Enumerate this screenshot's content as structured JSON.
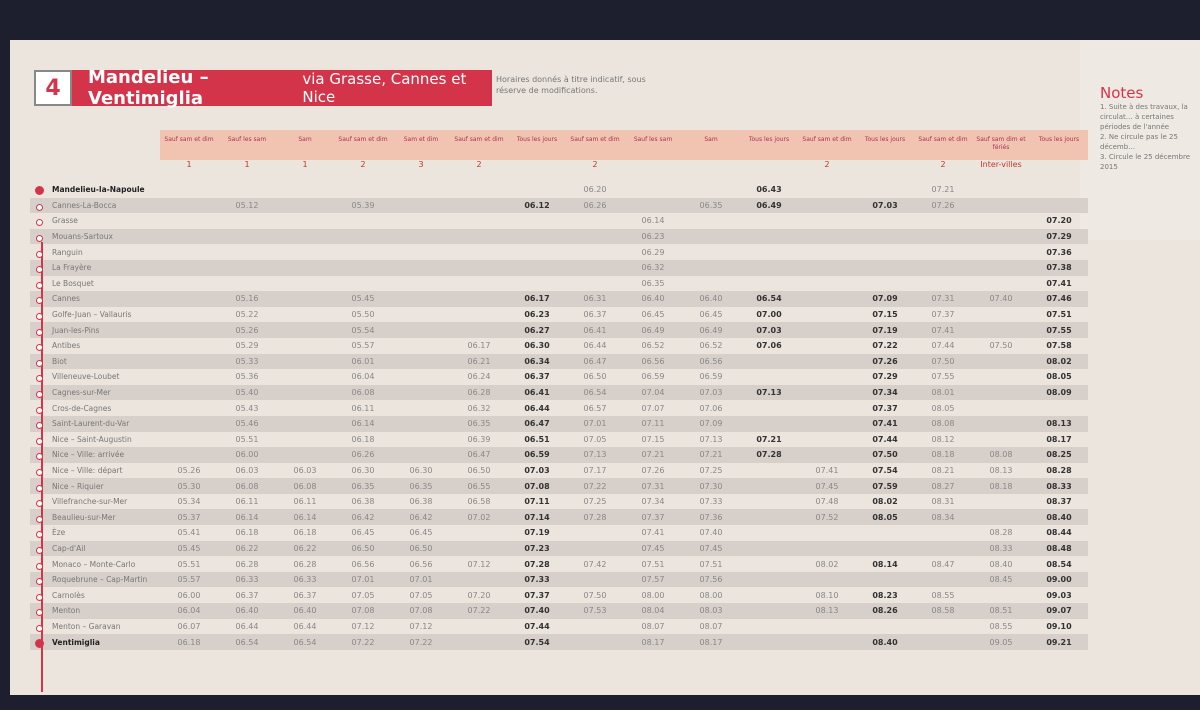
{
  "title": {
    "number": "4",
    "route": "Mandelieu – Ventimiglia",
    "via": "via Grasse, Cannes et Nice"
  },
  "disclaimer": "Horaires donnés à titre indicatif, sous réserve de modifications.",
  "notes": {
    "title": "Notes",
    "items": [
      "1. Suite à des travaux, la circulat… à certaines périodes de l'année",
      "2. Ne circule pas le 25 décemb…",
      "3. Circule le 25 décembre 2015"
    ]
  },
  "colors": {
    "accent": "#d4344a",
    "header_band": "#f1c3b1",
    "paper": "#ebe5de"
  },
  "stations": [
    "Mandelieu-la-Napoule",
    "Cannes-La-Bocca",
    "Grasse",
    "Mouans-Sartoux",
    "Ranguin",
    "La Frayère",
    "Le Bosquet",
    "Cannes",
    "Golfe-Juan – Vallauris",
    "Juan-les-Pins",
    "Antibes",
    "Biot",
    "Villeneuve-Loubet",
    "Cagnes-sur-Mer",
    "Cros-de-Cagnes",
    "Saint-Laurent-du-Var",
    "Nice – Saint-Augustin",
    "Nice – Ville: arrivée",
    "Nice – Ville: départ",
    "Nice – Riquier",
    "Villefranche-sur-Mer",
    "Beaulieu-sur-Mer",
    "Èze",
    "Cap-d'Ail",
    "Monaco – Monte-Carlo",
    "Roquebrune – Cap-Martin",
    "Carnolès",
    "Menton",
    "Menton – Garavan",
    "Ventimiglia"
  ],
  "columns": [
    {
      "days": "Sauf sam et dim",
      "note": "1",
      "bold": false,
      "times": [
        "",
        "",
        "",
        "",
        "",
        "",
        "",
        "",
        "",
        "",
        "",
        "",
        "",
        "",
        "",
        "",
        "",
        "",
        "05.26",
        "05.30",
        "05.34",
        "05.37",
        "05.41",
        "05.45",
        "05.51",
        "05.57",
        "06.00",
        "06.04",
        "06.07",
        "06.18"
      ]
    },
    {
      "days": "Sauf les sam",
      "note": "1",
      "bold": false,
      "times": [
        "",
        "05.12",
        "",
        "",
        "",
        "",
        "",
        "05.16",
        "05.22",
        "05.26",
        "05.29",
        "05.33",
        "05.36",
        "05.40",
        "05.43",
        "05.46",
        "05.51",
        "06.00",
        "06.03",
        "06.08",
        "06.11",
        "06.14",
        "06.18",
        "06.22",
        "06.28",
        "06.33",
        "06.37",
        "06.40",
        "06.44",
        "06.54"
      ]
    },
    {
      "days": "Sam",
      "note": "1",
      "bold": false,
      "times": [
        "",
        "",
        "",
        "",
        "",
        "",
        "",
        "",
        "",
        "",
        "",
        "",
        "",
        "",
        "",
        "",
        "",
        "",
        "06.03",
        "06.08",
        "06.11",
        "06.14",
        "06.18",
        "06.22",
        "06.28",
        "06.33",
        "06.37",
        "06.40",
        "06.44",
        "06.54"
      ]
    },
    {
      "days": "Sauf sam et dim",
      "note": "2",
      "bold": false,
      "times": [
        "",
        "05.39",
        "",
        "",
        "",
        "",
        "",
        "05.45",
        "05.50",
        "05.54",
        "05.57",
        "06.01",
        "06.04",
        "06.08",
        "06.11",
        "06.14",
        "06.18",
        "06.26",
        "06.30",
        "06.35",
        "06.38",
        "06.42",
        "06.45",
        "06.50",
        "06.56",
        "07.01",
        "07.05",
        "07.08",
        "07.12",
        "07.22"
      ]
    },
    {
      "days": "Sam et dim",
      "note": "3",
      "bold": false,
      "times": [
        "",
        "",
        "",
        "",
        "",
        "",
        "",
        "",
        "",
        "",
        "",
        "",
        "",
        "",
        "",
        "",
        "",
        "",
        "06.30",
        "06.35",
        "06.38",
        "06.42",
        "06.45",
        "06.50",
        "06.56",
        "07.01",
        "07.05",
        "07.08",
        "07.12",
        "07.22"
      ]
    },
    {
      "days": "Sauf sam et dim",
      "note": "2",
      "bold": false,
      "times": [
        "",
        "",
        "",
        "",
        "",
        "",
        "",
        "",
        "",
        "",
        "06.17",
        "06.21",
        "06.24",
        "06.28",
        "06.32",
        "06.35",
        "06.39",
        "06.47",
        "06.50",
        "06.55",
        "06.58",
        "07.02",
        "",
        "",
        "07.12",
        "",
        "07.20",
        "07.22",
        "",
        ""
      ]
    },
    {
      "days": "Tous les jours",
      "note": "",
      "bold": true,
      "times": [
        "",
        "06.12",
        "",
        "",
        "",
        "",
        "",
        "06.17",
        "06.23",
        "06.27",
        "06.30",
        "06.34",
        "06.37",
        "06.41",
        "06.44",
        "06.47",
        "06.51",
        "06.59",
        "07.03",
        "07.08",
        "07.11",
        "07.14",
        "07.19",
        "07.23",
        "07.28",
        "07.33",
        "07.37",
        "07.40",
        "07.44",
        "07.54"
      ]
    },
    {
      "days": "Sauf sam et dim",
      "note": "2",
      "bold": false,
      "times": [
        "06.20",
        "06.26",
        "",
        "",
        "",
        "",
        "",
        "06.31",
        "06.37",
        "06.41",
        "06.44",
        "06.47",
        "06.50",
        "06.54",
        "06.57",
        "07.01",
        "07.05",
        "07.13",
        "07.17",
        "07.22",
        "07.25",
        "07.28",
        "",
        "",
        "07.42",
        "",
        "07.50",
        "07.53",
        "",
        ""
      ]
    },
    {
      "days": "Sauf les sam",
      "note": "",
      "bold": false,
      "times": [
        "",
        "",
        "06.14",
        "06.23",
        "06.29",
        "06.32",
        "06.35",
        "06.40",
        "06.45",
        "06.49",
        "06.52",
        "06.56",
        "06.59",
        "07.04",
        "07.07",
        "07.11",
        "07.15",
        "07.21",
        "07.26",
        "07.31",
        "07.34",
        "07.37",
        "07.41",
        "07.45",
        "07.51",
        "07.57",
        "08.00",
        "08.04",
        "08.07",
        "08.17"
      ]
    },
    {
      "days": "Sam",
      "note": "",
      "bold": false,
      "times": [
        "",
        "06.35",
        "",
        "",
        "",
        "",
        "",
        "06.40",
        "06.45",
        "06.49",
        "06.52",
        "06.56",
        "06.59",
        "07.03",
        "07.06",
        "07.09",
        "07.13",
        "07.21",
        "07.25",
        "07.30",
        "07.33",
        "07.36",
        "07.40",
        "07.45",
        "07.51",
        "07.56",
        "08.00",
        "08.03",
        "08.07",
        "08.17"
      ]
    },
    {
      "days": "Tous les jours",
      "note": "",
      "bold": true,
      "times": [
        "06.43",
        "06.49",
        "",
        "",
        "",
        "",
        "",
        "06.54",
        "07.00",
        "07.03",
        "07.06",
        "",
        "",
        "07.13",
        "",
        "",
        "07.21",
        "07.28",
        "",
        "",
        "",
        "",
        "",
        "",
        "",
        "",
        "",
        "",
        "",
        ""
      ]
    },
    {
      "days": "Sauf sam et dim",
      "note": "2",
      "bold": false,
      "times": [
        "",
        "",
        "",
        "",
        "",
        "",
        "",
        "",
        "",
        "",
        "",
        "",
        "",
        "",
        "",
        "",
        "",
        "",
        "07.41",
        "07.45",
        "07.48",
        "07.52",
        "",
        "",
        "08.02",
        "",
        "08.10",
        "08.13",
        "",
        ""
      ]
    },
    {
      "days": "Tous les jours",
      "note": "",
      "bold": true,
      "times": [
        "",
        "07.03",
        "",
        "",
        "",
        "",
        "",
        "07.09",
        "07.15",
        "07.19",
        "07.22",
        "07.26",
        "07.29",
        "07.34",
        "07.37",
        "07.41",
        "07.44",
        "07.50",
        "07.54",
        "07.59",
        "08.02",
        "08.05",
        "",
        "",
        "08.14",
        "",
        "08.23",
        "08.26",
        "",
        "08.40"
      ]
    },
    {
      "days": "Sauf sam et dim",
      "note": "2",
      "bold": false,
      "times": [
        "07.21",
        "07.26",
        "",
        "",
        "",
        "",
        "",
        "07.31",
        "07.37",
        "07.41",
        "07.44",
        "07.50",
        "07.55",
        "08.01",
        "08.05",
        "08.08",
        "08.12",
        "08.18",
        "08.21",
        "08.27",
        "08.31",
        "08.34",
        "",
        "",
        "08.47",
        "",
        "08.55",
        "08.58",
        "",
        ""
      ]
    },
    {
      "days": "Sauf sam dim et fériés",
      "note": "Inter-villes",
      "bold": false,
      "times": [
        "",
        "",
        "",
        "",
        "",
        "",
        "",
        "07.40",
        "",
        "",
        "07.50",
        "",
        "",
        "",
        "",
        "",
        "",
        "08.08",
        "08.13",
        "08.18",
        "",
        "",
        "08.28",
        "08.33",
        "08.40",
        "08.45",
        "",
        "08.51",
        "08.55",
        "09.05"
      ]
    },
    {
      "days": "Tous les jours",
      "note": "",
      "bold": true,
      "times": [
        "",
        "",
        "07.20",
        "07.29",
        "07.36",
        "07.38",
        "07.41",
        "07.46",
        "07.51",
        "07.55",
        "07.58",
        "08.02",
        "08.05",
        "08.09",
        "",
        "08.13",
        "08.17",
        "08.25",
        "08.28",
        "08.33",
        "08.37",
        "08.40",
        "08.44",
        "08.48",
        "08.54",
        "09.00",
        "09.03",
        "09.07",
        "09.10",
        "09.21"
      ]
    }
  ]
}
